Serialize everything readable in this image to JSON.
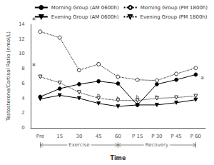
{
  "chart_data": {
    "type": "line",
    "xlabel": "Time",
    "ylabel": "Testosterone/Cortisol Ratio (nmol/L)",
    "categories": [
      "Pre",
      "15",
      "30",
      "45",
      "60",
      "P 15",
      "P 30",
      "P 45",
      "P 60"
    ],
    "series": [
      {
        "name": "Morning Group (AM 0600h)",
        "color": "black",
        "marker": "circle",
        "line_style": "solid",
        "values": [
          4.2,
          5.3,
          5.9,
          6.3,
          6.0,
          3.1,
          5.9,
          6.5,
          7.2
        ]
      },
      {
        "name": "Morning Group (PM 1800h)",
        "color": "black",
        "marker": "circle_open",
        "line_style": "dotted",
        "values": [
          13.0,
          12.2,
          7.8,
          8.6,
          6.9,
          6.5,
          6.4,
          7.3,
          8.1
        ]
      },
      {
        "name": "Evening Group (AM 0600h)",
        "color": "black",
        "marker": "triangle_down",
        "line_style": "solid",
        "values": [
          3.9,
          4.4,
          4.0,
          3.3,
          2.9,
          3.1,
          3.1,
          3.4,
          3.8
        ]
      },
      {
        "name": "Evening Group (PM 1800h)",
        "color": "black",
        "marker": "triangle_down_open",
        "line_style": "dotted",
        "values": [
          6.9,
          6.1,
          4.8,
          4.0,
          3.7,
          3.7,
          4.0,
          4.1,
          4.3
        ]
      }
    ],
    "ylim": [
      0,
      14
    ],
    "yticks": [
      0,
      2,
      4,
      6,
      8,
      10,
      12,
      14
    ],
    "grid": false,
    "legend": "upper right",
    "annotations": [
      {
        "text": "*",
        "x": "Pre",
        "y": 13.55
      },
      {
        "text": "*",
        "x": "Pre",
        "y": 7.4
      },
      {
        "text": "b",
        "x": "45",
        "y": 3.55
      },
      {
        "text": "b",
        "x": "60",
        "y": 3.15
      },
      {
        "text": "b",
        "x": "P 15",
        "y": 3.35
      },
      {
        "text": "b",
        "x": "P 30",
        "y": 3.35
      },
      {
        "text": "a",
        "x": "P 60",
        "y": 6.8
      },
      {
        "text": "Exercise",
        "from": "Pre",
        "to": "60"
      },
      {
        "text": "Recovery",
        "from": "60",
        "to": "P 60"
      }
    ]
  }
}
